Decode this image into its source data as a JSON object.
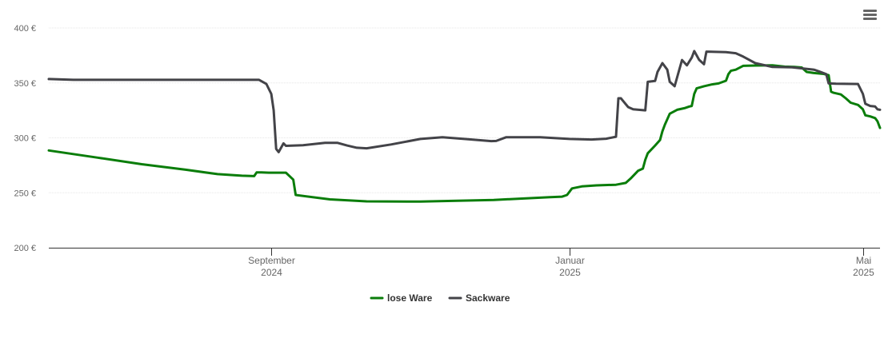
{
  "menu_icon": "hamburger-menu-icon",
  "chart_data": {
    "type": "line",
    "ylim": [
      200,
      400
    ],
    "y_ticks": [
      {
        "value": 200,
        "label": "200 €"
      },
      {
        "value": 250,
        "label": "250 €"
      },
      {
        "value": 300,
        "label": "300 €"
      },
      {
        "value": 350,
        "label": "350 €"
      },
      {
        "value": 400,
        "label": "400 €"
      }
    ],
    "xlim": [
      "2024-06-02",
      "2025-05-08"
    ],
    "x_ticks": [
      {
        "date": "2024-09-01",
        "line1": "September",
        "line2": "2024"
      },
      {
        "date": "2025-01-01",
        "line1": "Januar",
        "line2": "2025"
      },
      {
        "date": "2025-05-01",
        "line1": "Mai",
        "line2": "2025"
      }
    ],
    "grid": true,
    "legend_position": "bottom-center",
    "series": [
      {
        "name": "lose Ware",
        "color": "#0a7d0a",
        "points": [
          [
            "2024-06-02",
            288.5
          ],
          [
            "2024-06-22",
            282
          ],
          [
            "2024-07-10",
            276
          ],
          [
            "2024-07-28",
            271
          ],
          [
            "2024-08-10",
            267
          ],
          [
            "2024-08-20",
            265.5
          ],
          [
            "2024-08-25",
            265.2
          ],
          [
            "2024-08-26",
            268.5
          ],
          [
            "2024-08-28",
            268.5
          ],
          [
            "2024-08-31",
            268.3
          ],
          [
            "2024-09-07",
            268.3
          ],
          [
            "2024-09-10",
            262
          ],
          [
            "2024-09-11",
            248
          ],
          [
            "2024-09-25",
            244
          ],
          [
            "2024-10-10",
            242.2
          ],
          [
            "2024-11-01",
            242
          ],
          [
            "2024-12-01",
            243.5
          ],
          [
            "2024-12-15",
            245
          ],
          [
            "2024-12-24",
            246
          ],
          [
            "2024-12-29",
            246.5
          ],
          [
            "2024-12-31",
            248
          ],
          [
            "2025-01-02",
            254
          ],
          [
            "2025-01-06",
            255.8
          ],
          [
            "2025-01-12",
            256.7
          ],
          [
            "2025-01-20",
            257.3
          ],
          [
            "2025-01-24",
            259
          ],
          [
            "2025-01-26",
            263
          ],
          [
            "2025-01-29",
            270
          ],
          [
            "2025-01-31",
            272
          ],
          [
            "2025-02-01",
            280
          ],
          [
            "2025-02-02",
            286
          ],
          [
            "2025-02-05",
            293
          ],
          [
            "2025-02-07",
            298
          ],
          [
            "2025-02-08",
            306
          ],
          [
            "2025-02-09",
            312
          ],
          [
            "2025-02-11",
            322
          ],
          [
            "2025-02-14",
            325.5
          ],
          [
            "2025-02-17",
            327
          ],
          [
            "2025-02-19",
            328.5
          ],
          [
            "2025-02-20",
            329
          ],
          [
            "2025-02-21",
            340
          ],
          [
            "2025-02-22",
            345
          ],
          [
            "2025-02-25",
            347
          ],
          [
            "2025-02-28",
            348.5
          ],
          [
            "2025-03-03",
            349.5
          ],
          [
            "2025-03-06",
            352
          ],
          [
            "2025-03-07",
            358
          ],
          [
            "2025-03-08",
            361
          ],
          [
            "2025-03-10",
            362
          ],
          [
            "2025-03-13",
            365.5
          ],
          [
            "2025-03-18",
            365.8
          ],
          [
            "2025-03-25",
            366
          ],
          [
            "2025-03-30",
            364.8
          ],
          [
            "2025-04-03",
            364.5
          ],
          [
            "2025-04-06",
            364
          ],
          [
            "2025-04-08",
            360
          ],
          [
            "2025-04-11",
            359
          ],
          [
            "2025-04-15",
            358.2
          ],
          [
            "2025-04-17",
            357
          ],
          [
            "2025-04-18",
            342
          ],
          [
            "2025-04-19",
            341
          ],
          [
            "2025-04-22",
            339.5
          ],
          [
            "2025-04-24",
            336
          ],
          [
            "2025-04-26",
            332
          ],
          [
            "2025-04-29",
            330
          ],
          [
            "2025-05-01",
            326
          ],
          [
            "2025-05-02",
            320.5
          ],
          [
            "2025-05-04",
            319.5
          ],
          [
            "2025-05-06",
            318
          ],
          [
            "2025-05-07",
            315
          ],
          [
            "2025-05-08",
            309
          ]
        ]
      },
      {
        "name": "Sackware",
        "color": "#434348",
        "points": [
          [
            "2024-06-02",
            353.5
          ],
          [
            "2024-06-12",
            352.8
          ],
          [
            "2024-07-10",
            352.8
          ],
          [
            "2024-08-10",
            352.8
          ],
          [
            "2024-08-27",
            352.8
          ],
          [
            "2024-08-30",
            349
          ],
          [
            "2024-09-01",
            340
          ],
          [
            "2024-09-02",
            325
          ],
          [
            "2024-09-03",
            290
          ],
          [
            "2024-09-04",
            287
          ],
          [
            "2024-09-06",
            295
          ],
          [
            "2024-09-07",
            292.7
          ],
          [
            "2024-09-14",
            293.3
          ],
          [
            "2024-09-23",
            295.5
          ],
          [
            "2024-09-28",
            295.5
          ],
          [
            "2024-10-02",
            293
          ],
          [
            "2024-10-06",
            291
          ],
          [
            "2024-10-10",
            290.5
          ],
          [
            "2024-10-20",
            294
          ],
          [
            "2024-11-01",
            299
          ],
          [
            "2024-11-10",
            300.5
          ],
          [
            "2024-11-20",
            298.8
          ],
          [
            "2024-11-30",
            297
          ],
          [
            "2024-12-02",
            297.2
          ],
          [
            "2024-12-06",
            300.5
          ],
          [
            "2024-12-20",
            300.5
          ],
          [
            "2025-01-01",
            299
          ],
          [
            "2025-01-10",
            298.5
          ],
          [
            "2025-01-16",
            299.2
          ],
          [
            "2025-01-20",
            301
          ],
          [
            "2025-01-21",
            336
          ],
          [
            "2025-01-22",
            336
          ],
          [
            "2025-01-25",
            328
          ],
          [
            "2025-01-27",
            326
          ],
          [
            "2025-02-01",
            325
          ],
          [
            "2025-02-02",
            351
          ],
          [
            "2025-02-05",
            351.8
          ],
          [
            "2025-02-06",
            360
          ],
          [
            "2025-02-08",
            368
          ],
          [
            "2025-02-10",
            362
          ],
          [
            "2025-02-11",
            351
          ],
          [
            "2025-02-13",
            347
          ],
          [
            "2025-02-16",
            370.8
          ],
          [
            "2025-02-18",
            366
          ],
          [
            "2025-02-20",
            373
          ],
          [
            "2025-02-21",
            379
          ],
          [
            "2025-02-23",
            371
          ],
          [
            "2025-02-25",
            367
          ],
          [
            "2025-02-26",
            378.5
          ],
          [
            "2025-03-06",
            378
          ],
          [
            "2025-03-10",
            377
          ],
          [
            "2025-03-13",
            374
          ],
          [
            "2025-03-18",
            368
          ],
          [
            "2025-03-25",
            364.5
          ],
          [
            "2025-04-02",
            364.2
          ],
          [
            "2025-04-11",
            362
          ],
          [
            "2025-04-13",
            360.5
          ],
          [
            "2025-04-16",
            358
          ],
          [
            "2025-04-17",
            349.5
          ],
          [
            "2025-04-20",
            349.2
          ],
          [
            "2025-04-29",
            349
          ],
          [
            "2025-05-01",
            340
          ],
          [
            "2025-05-02",
            331
          ],
          [
            "2025-05-04",
            329
          ],
          [
            "2025-05-06",
            328.5
          ],
          [
            "2025-05-07",
            326
          ],
          [
            "2025-05-08",
            325.5
          ]
        ]
      }
    ]
  }
}
